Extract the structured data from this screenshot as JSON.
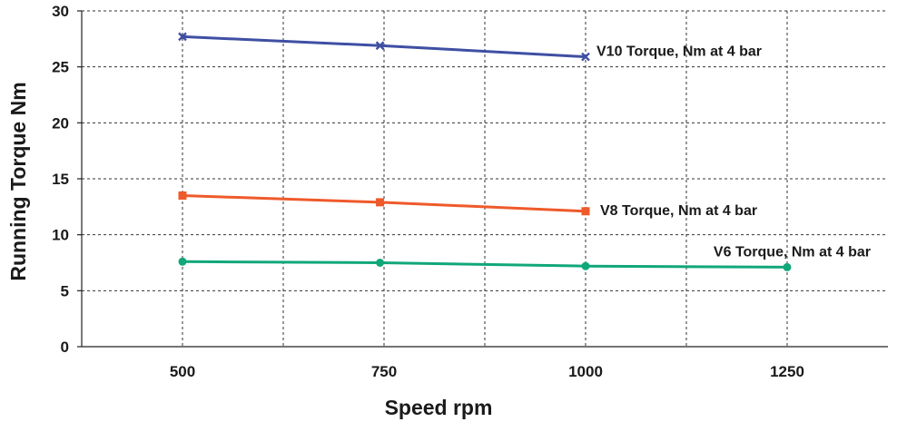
{
  "chart_data": {
    "type": "line",
    "xlabel": "Speed rpm",
    "ylabel": "Running Torque Nm",
    "xlim": [
      375,
      1375
    ],
    "ylim": [
      0,
      30
    ],
    "x_ticks": [
      500,
      750,
      1000,
      1250
    ],
    "y_ticks": [
      0,
      5,
      10,
      15,
      20,
      25,
      30
    ],
    "x_tick_labels": [
      "500",
      "750",
      "1000",
      "1250"
    ],
    "y_tick_labels": [
      "0",
      "5",
      "10",
      "15",
      "20",
      "25",
      "30"
    ],
    "x_grid": [
      500,
      625,
      750,
      875,
      1000,
      1125,
      1250
    ],
    "grid": true,
    "grid_style": "dashed",
    "series": [
      {
        "name": "V10 Torque, Nm at 4 bar",
        "color": "#3f4fa3",
        "marker": "x",
        "x": [
          500,
          745,
          1000
        ],
        "values": [
          27.7,
          26.9,
          25.9
        ]
      },
      {
        "name": "V8 Torque, Nm at 4 bar",
        "color": "#ef5a2a",
        "marker": "square",
        "x": [
          500,
          745,
          1000
        ],
        "values": [
          13.5,
          12.9,
          12.1
        ]
      },
      {
        "name": "V6 Torque, Nm at 4 bar",
        "color": "#11a77a",
        "marker": "circle",
        "x": [
          500,
          745,
          1000,
          1250
        ],
        "values": [
          7.6,
          7.5,
          7.2,
          7.1
        ]
      }
    ]
  }
}
